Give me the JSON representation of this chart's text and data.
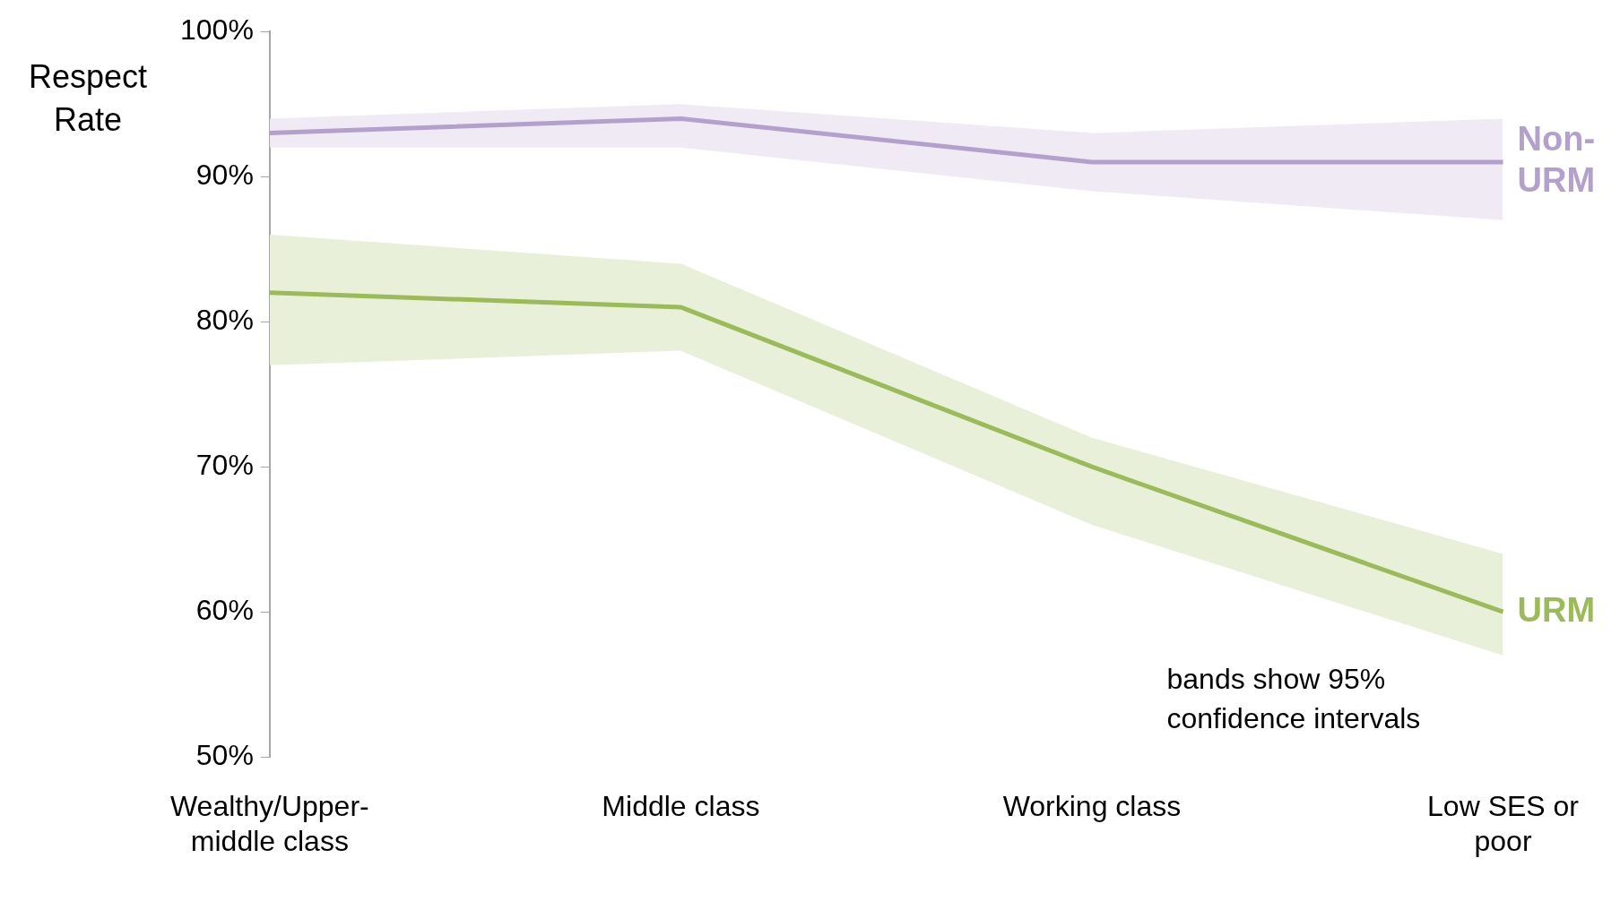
{
  "chart_data": {
    "type": "line",
    "ylabel": "Respect Rate",
    "categories": [
      "Wealthy/Upper-middle class",
      "Middle class",
      "Working class",
      "Low SES or poor"
    ],
    "series": [
      {
        "name": "Non-URM",
        "color": "#b4a0cc",
        "values": [
          93,
          94,
          91,
          91
        ],
        "lower": [
          92,
          92,
          89,
          87
        ],
        "upper": [
          94,
          95,
          93,
          94
        ]
      },
      {
        "name": "URM",
        "color": "#9bbb59",
        "values": [
          82,
          81,
          70,
          60
        ],
        "lower": [
          77,
          78,
          66,
          57
        ],
        "upper": [
          86,
          84,
          72,
          64
        ]
      }
    ],
    "ylim": [
      50,
      100
    ],
    "yticks": [
      {
        "value": 50,
        "label": "50%"
      },
      {
        "value": 60,
        "label": "60%"
      },
      {
        "value": 70,
        "label": "70%"
      },
      {
        "value": 80,
        "label": "80%"
      },
      {
        "value": 90,
        "label": "90%"
      },
      {
        "value": 100,
        "label": "100%"
      }
    ],
    "grid": false,
    "legend": false,
    "marker": "none",
    "line_style": "solid",
    "annotations": [
      "bands show 95% confidence intervals"
    ]
  }
}
